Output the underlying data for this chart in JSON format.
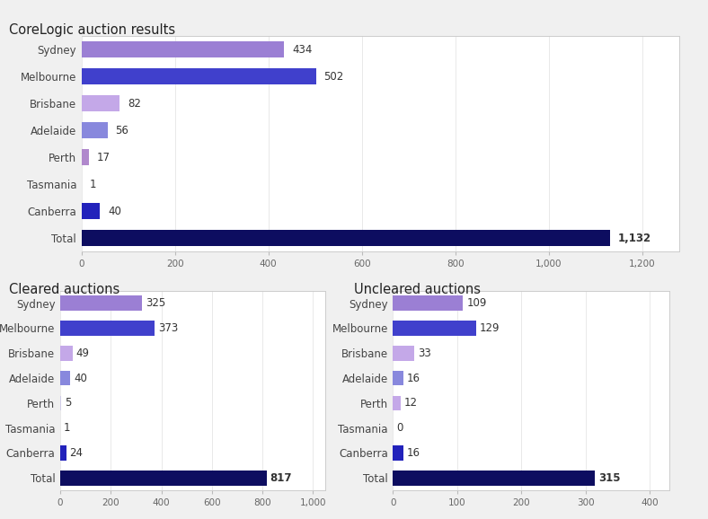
{
  "top_chart": {
    "title": "CoreLogic auction results",
    "categories": [
      "Sydney",
      "Melbourne",
      "Brisbane",
      "Adelaide",
      "Perth",
      "Tasmania",
      "Canberra",
      "Total"
    ],
    "values": [
      434,
      502,
      82,
      56,
      17,
      1,
      40,
      1132
    ],
    "colors": [
      "#9b7fd4",
      "#4040cc",
      "#c4a8e8",
      "#8888dd",
      "#b088cc",
      "#d0cce8",
      "#2222bb",
      "#0d0d60"
    ],
    "xlim": [
      0,
      1280
    ],
    "xticks": [
      0,
      200,
      400,
      600,
      800,
      1000,
      1200
    ],
    "xtick_labels": [
      "0",
      "200",
      "400",
      "600",
      "800",
      "1,000",
      "1,200"
    ]
  },
  "cleared_chart": {
    "title": "Cleared auctions",
    "categories": [
      "Sydney",
      "Melbourne",
      "Brisbane",
      "Adelaide",
      "Perth",
      "Tasmania",
      "Canberra",
      "Total"
    ],
    "values": [
      325,
      373,
      49,
      40,
      5,
      1,
      24,
      817
    ],
    "colors": [
      "#9b7fd4",
      "#4040cc",
      "#c4a8e8",
      "#8888dd",
      "#d0cce8",
      "#d0cce8",
      "#2222bb",
      "#0d0d60"
    ],
    "xlim": [
      0,
      1050
    ],
    "xticks": [
      0,
      200,
      400,
      600,
      800,
      1000
    ],
    "xtick_labels": [
      "0",
      "200",
      "400",
      "600",
      "800",
      "1,000"
    ]
  },
  "uncleared_chart": {
    "title": "Uncleared auctions",
    "categories": [
      "Sydney",
      "Melbourne",
      "Brisbane",
      "Adelaide",
      "Perth",
      "Tasmania",
      "Canberra",
      "Total"
    ],
    "values": [
      109,
      129,
      33,
      16,
      12,
      0,
      16,
      315
    ],
    "colors": [
      "#9b7fd4",
      "#4040cc",
      "#c4a8e8",
      "#8888dd",
      "#c4a8e8",
      "#ffffff",
      "#2222bb",
      "#0d0d60"
    ],
    "xlim": [
      0,
      430
    ],
    "xticks": [
      0,
      100,
      200,
      300,
      400
    ],
    "xtick_labels": [
      "0",
      "100",
      "200",
      "300",
      "400"
    ]
  },
  "bg_color": "#f0f0f0",
  "panel_color": "#ffffff",
  "panel_border_color": "#cccccc",
  "label_fontsize": 8.5,
  "title_fontsize": 10.5,
  "value_fontsize": 8.5,
  "tick_fontsize": 7.5,
  "bar_height": 0.6
}
